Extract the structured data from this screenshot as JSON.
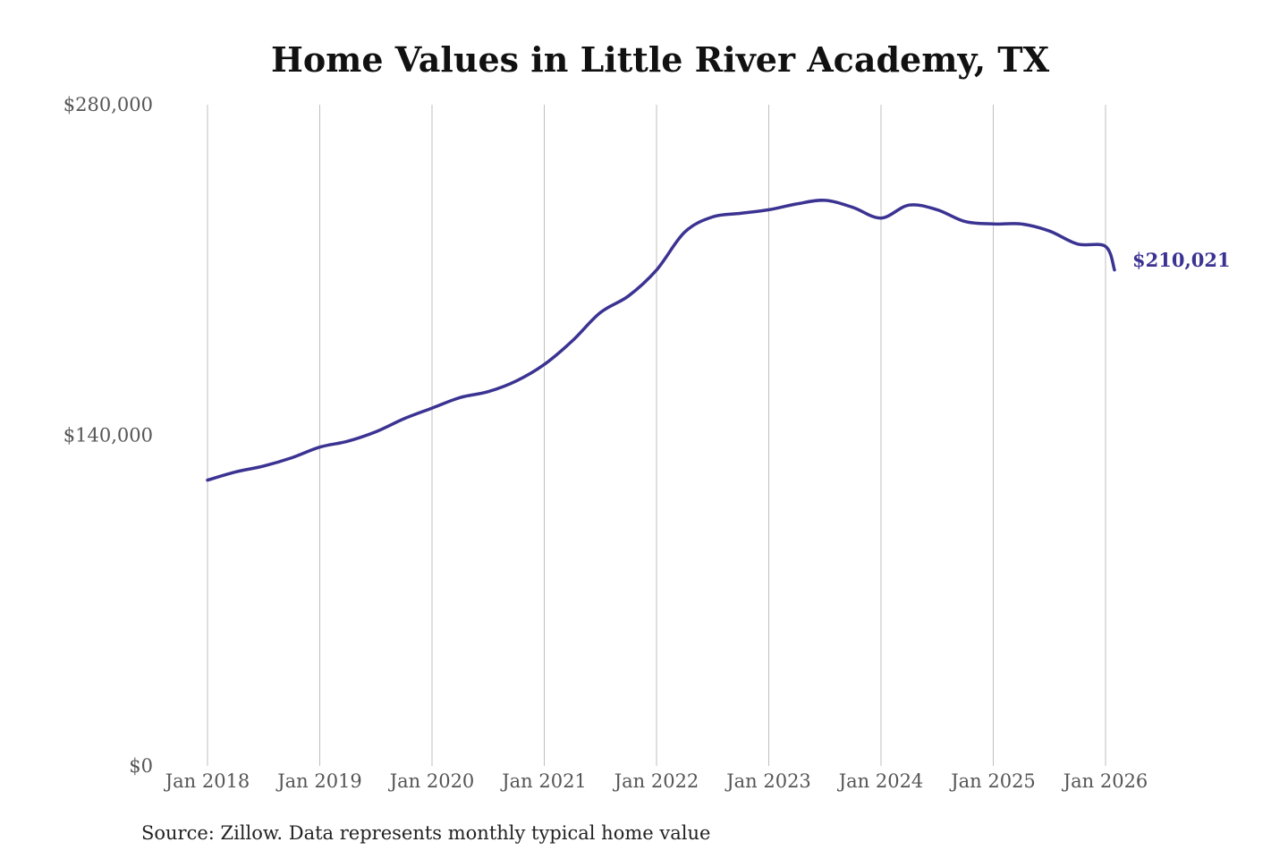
{
  "chart_data": {
    "type": "line",
    "title": "Home Values in Little River Academy, TX",
    "xlabel": "",
    "ylabel": "",
    "ylim": [
      0,
      280000
    ],
    "yticks": [
      0,
      140000,
      280000
    ],
    "ytick_labels": [
      "$0",
      "$140,000",
      "$280,000"
    ],
    "xlim": [
      2018,
      2026.1
    ],
    "xticks": [
      2018,
      2019,
      2020,
      2021,
      2022,
      2023,
      2024,
      2025,
      2026
    ],
    "xtick_labels": [
      "Jan 2018",
      "Jan 2019",
      "Jan 2020",
      "Jan 2021",
      "Jan 2022",
      "Jan 2023",
      "Jan 2024",
      "Jan 2025",
      "Jan 2026"
    ],
    "grid": "vertical",
    "series": [
      {
        "name": "Typical home value",
        "color": "#3b3392",
        "x": [
          2018.0,
          2018.25,
          2018.5,
          2018.75,
          2019.0,
          2019.25,
          2019.5,
          2019.75,
          2020.0,
          2020.25,
          2020.5,
          2020.75,
          2021.0,
          2021.25,
          2021.5,
          2021.75,
          2022.0,
          2022.25,
          2022.5,
          2022.75,
          2023.0,
          2023.25,
          2023.5,
          2023.75,
          2024.0,
          2024.25,
          2024.5,
          2024.75,
          2025.0,
          2025.25,
          2025.5,
          2025.75,
          2026.0,
          2026.08
        ],
        "values": [
          121000,
          124500,
          127000,
          130500,
          135000,
          137500,
          141500,
          147000,
          151500,
          156000,
          158500,
          163000,
          170000,
          180000,
          192000,
          199000,
          210000,
          226000,
          232500,
          234000,
          235500,
          238000,
          239500,
          236500,
          232000,
          237500,
          235500,
          230500,
          229500,
          229500,
          226500,
          221000,
          220000,
          210021
        ]
      }
    ],
    "end_label": "$210,021"
  },
  "source_note": "Source: Zillow. Data represents monthly typical home value"
}
